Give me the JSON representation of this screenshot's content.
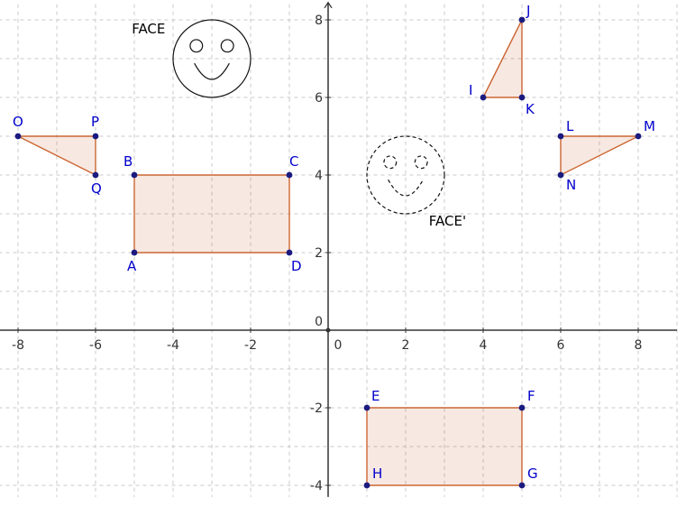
{
  "axes": {
    "x_ticks": [
      "-8",
      "-6",
      "-4",
      "-2",
      "0",
      "2",
      "4",
      "6",
      "8"
    ],
    "y_ticks": [
      "-4",
      "-2",
      "2",
      "4",
      "6",
      "8"
    ],
    "x_range": [
      -8.5,
      9.0
    ],
    "y_range": [
      -4.3,
      8.4
    ],
    "grid": "dashed, 1 unit"
  },
  "colors": {
    "shape_fill": "rgba(204,102,51,0.15)",
    "shape_stroke": "#cc6633",
    "point": "#1a1a80",
    "label": "#0000cc",
    "grid": "#c8c8c8"
  },
  "points": [
    {
      "name": "A",
      "x": -5,
      "y": 2
    },
    {
      "name": "B",
      "x": -5,
      "y": 4
    },
    {
      "name": "C",
      "x": -1,
      "y": 4
    },
    {
      "name": "D",
      "x": -1,
      "y": 2
    },
    {
      "name": "E",
      "x": 1,
      "y": -2
    },
    {
      "name": "F",
      "x": 5,
      "y": -2
    },
    {
      "name": "G",
      "x": 5,
      "y": -4
    },
    {
      "name": "H",
      "x": 1,
      "y": -4
    },
    {
      "name": "I",
      "x": 4,
      "y": 6
    },
    {
      "name": "J",
      "x": 5,
      "y": 8
    },
    {
      "name": "K",
      "x": 5,
      "y": 6
    },
    {
      "name": "L",
      "x": 6,
      "y": 5
    },
    {
      "name": "M",
      "x": 8,
      "y": 5
    },
    {
      "name": "N",
      "x": 6,
      "y": 4
    },
    {
      "name": "O",
      "x": -8,
      "y": 5
    },
    {
      "name": "P",
      "x": -6,
      "y": 5
    },
    {
      "name": "Q",
      "x": -6,
      "y": 4
    }
  ],
  "polygons": [
    {
      "name": "ABCD",
      "vertices": [
        "A",
        "B",
        "C",
        "D"
      ]
    },
    {
      "name": "EFGH",
      "vertices": [
        "E",
        "F",
        "G",
        "H"
      ]
    },
    {
      "name": "IJK",
      "vertices": [
        "I",
        "J",
        "K"
      ]
    },
    {
      "name": "LMN",
      "vertices": [
        "L",
        "M",
        "N"
      ]
    },
    {
      "name": "OPQ",
      "vertices": [
        "O",
        "P",
        "Q"
      ]
    }
  ],
  "faces": [
    {
      "label": "FACE",
      "center": [
        -3,
        7
      ],
      "radius": 1,
      "style": "solid"
    },
    {
      "label": "FACE'",
      "center": [
        2,
        4
      ],
      "radius": 1,
      "style": "dashed"
    }
  ]
}
